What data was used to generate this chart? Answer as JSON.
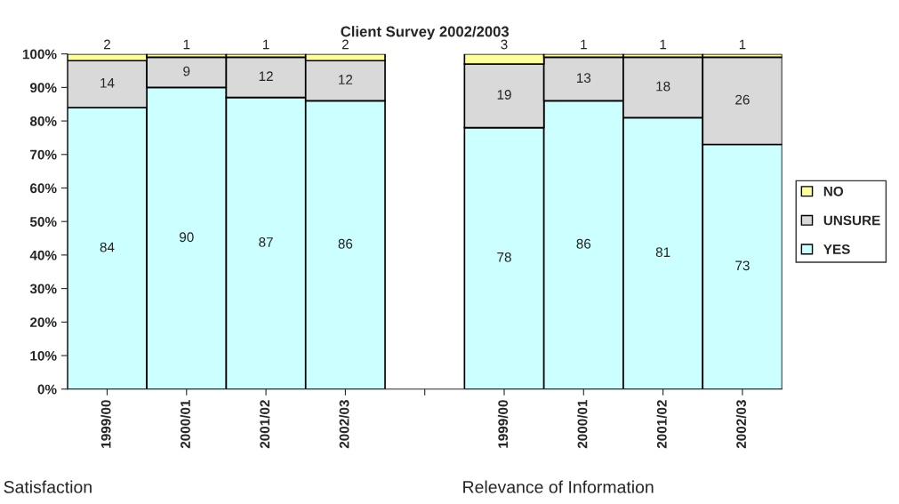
{
  "chart_data": {
    "type": "bar",
    "title": "Client Survey 2002/2003",
    "categories": [
      "1999/00",
      "2000/01",
      "2001/02",
      "2002/03",
      null,
      "1999/00",
      "2000/01",
      "2001/02",
      "2002/03"
    ],
    "stacked": true,
    "series": [
      {
        "name": "YES",
        "color": "#ccffff",
        "values": [
          84,
          90,
          87,
          86,
          null,
          78,
          86,
          81,
          73
        ]
      },
      {
        "name": "UNSURE",
        "color": "#d9d9d9",
        "values": [
          14,
          9,
          12,
          12,
          null,
          19,
          13,
          18,
          26
        ]
      },
      {
        "name": "NO",
        "color": "#ffff99",
        "values": [
          2,
          1,
          1,
          2,
          null,
          3,
          1,
          1,
          1
        ]
      }
    ],
    "ylim": [
      0,
      100
    ],
    "yticks": [
      {
        "value": 0,
        "label": "0%"
      },
      {
        "value": 10,
        "label": "10%"
      },
      {
        "value": 20,
        "label": "20%"
      },
      {
        "value": 30,
        "label": "30%"
      },
      {
        "value": 40,
        "label": "40%"
      },
      {
        "value": 50,
        "label": "50%"
      },
      {
        "value": 60,
        "label": "60%"
      },
      {
        "value": 70,
        "label": "70%"
      },
      {
        "value": 80,
        "label": "80%"
      },
      {
        "value": 90,
        "label": "90%"
      },
      {
        "value": 100,
        "label": "100%"
      }
    ],
    "data_labels": true,
    "grid": false,
    "legend": "right",
    "annotations": [
      "Satisfaction",
      "Relevance of Information"
    ]
  }
}
